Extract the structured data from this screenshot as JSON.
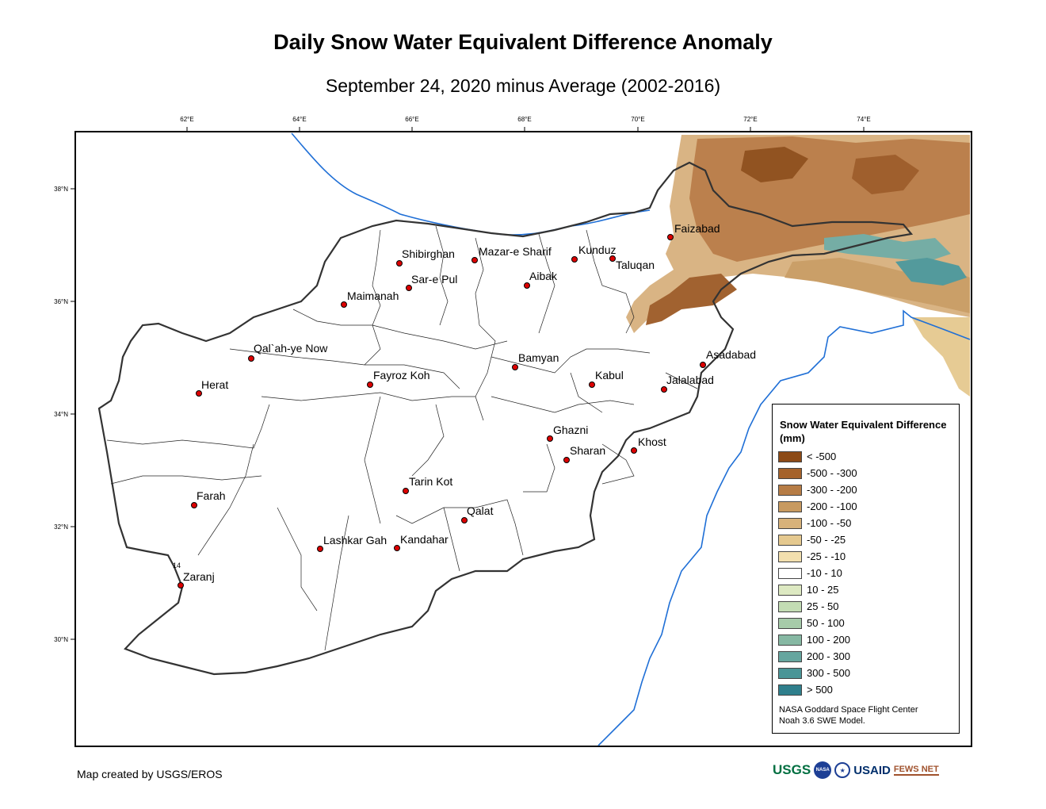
{
  "title": "Daily Snow Water Equivalent Difference Anomaly",
  "subtitle": "September 24, 2020 minus Average (2002-2016)",
  "axes": {
    "lon_ticks": [
      "62°E",
      "64°E",
      "66°E",
      "68°E",
      "70°E",
      "72°E",
      "74°E"
    ],
    "lat_ticks": [
      "38°N",
      "36°N",
      "34°N",
      "32°N",
      "30°N"
    ]
  },
  "cities": [
    {
      "name": "Faizabad"
    },
    {
      "name": "Shibirghan"
    },
    {
      "name": "Mazar-e Sharif"
    },
    {
      "name": "Kunduz"
    },
    {
      "name": "Taluqan"
    },
    {
      "name": "Sar-e Pul"
    },
    {
      "name": "Aibak"
    },
    {
      "name": "Maimanah"
    },
    {
      "name": "Qal`ah-ye Now"
    },
    {
      "name": "Herat"
    },
    {
      "name": "Fayroz Koh"
    },
    {
      "name": "Bamyan"
    },
    {
      "name": "Kabul"
    },
    {
      "name": "Asadabad"
    },
    {
      "name": "Jalalabad"
    },
    {
      "name": "Ghazni"
    },
    {
      "name": "Sharan"
    },
    {
      "name": "Khost"
    },
    {
      "name": "Farah"
    },
    {
      "name": "Tarin Kot"
    },
    {
      "name": "Qalat"
    },
    {
      "name": "Lashkar Gah"
    },
    {
      "name": "Kandahar"
    },
    {
      "name": "Zaranj"
    }
  ],
  "map_annotation": "14",
  "legend": {
    "title": "Snow Water Equivalent Difference (mm)",
    "items": [
      {
        "label": "< -500",
        "color": "#8c4a16"
      },
      {
        "label": "-500 - -300",
        "color": "#a5622b"
      },
      {
        "label": "-300 - -200",
        "color": "#b67c45"
      },
      {
        "label": "-200 - -100",
        "color": "#c89a60"
      },
      {
        "label": "-100 - -50",
        "color": "#d7b27a"
      },
      {
        "label": "-50 - -25",
        "color": "#e5c98f"
      },
      {
        "label": "-25 - -10",
        "color": "#f2dfae"
      },
      {
        "label": "-10 - 10",
        "color": "#ffffff"
      },
      {
        "label": "10 - 25",
        "color": "#dde9c2"
      },
      {
        "label": "25 - 50",
        "color": "#c3dcb4"
      },
      {
        "label": "50 - 100",
        "color": "#a6cba9"
      },
      {
        "label": "100 - 200",
        "color": "#86b8a3"
      },
      {
        "label": "200 - 300",
        "color": "#66a69f"
      },
      {
        "label": "300 - 500",
        "color": "#4a9597"
      },
      {
        "label": "> 500",
        "color": "#2f7f8c"
      }
    ],
    "credit_line1": "NASA Goddard Space Flight Center",
    "credit_line2": "Noah 3.6 SWE Model."
  },
  "footer": "Map created by USGS/EROS",
  "logos": {
    "usgs": "USGS",
    "nasa": "NASA",
    "seal": "★",
    "usaid": "USAID",
    "fews": "FEWS NET"
  }
}
